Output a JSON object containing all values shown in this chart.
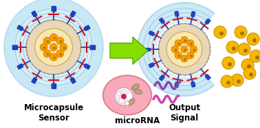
{
  "bg_color": "#ffffff",
  "title_left": "Microcapsule\nSensor",
  "title_right": "Output\nSignal",
  "label_bottom": "microRNA",
  "arrow_color": "#88dd00",
  "arrow_edge_color": "#55aa00",
  "outer_ring_color1": "#c8e8f5",
  "outer_ring_color2": "#b0d8ef",
  "core_bg_color": "#e8d8b8",
  "core_inner_color": "#f8f0e0",
  "dna_blue": "#1133cc",
  "dna_red": "#cc1111",
  "dna_rect_color": "#2244bb",
  "dot_orange": "#f5a000",
  "dot_orange_edge": "#d08000",
  "dot_dark": "#cc6600",
  "released_dot_color": "#f5b800",
  "released_dot_edge": "#d09000",
  "cell_color": "#f8aabb",
  "cell_edge": "#e08090",
  "nucleus_color": "#ffffff",
  "nucleus_edge": "#d0a0b8",
  "nucleolus_color": "#cc2255",
  "mito_color": "#c8a888",
  "mito_edge": "#a08868",
  "mirna_color1": "#8844aa",
  "mirna_color2": "#cc44aa",
  "dashed_circle_color": "#999999"
}
